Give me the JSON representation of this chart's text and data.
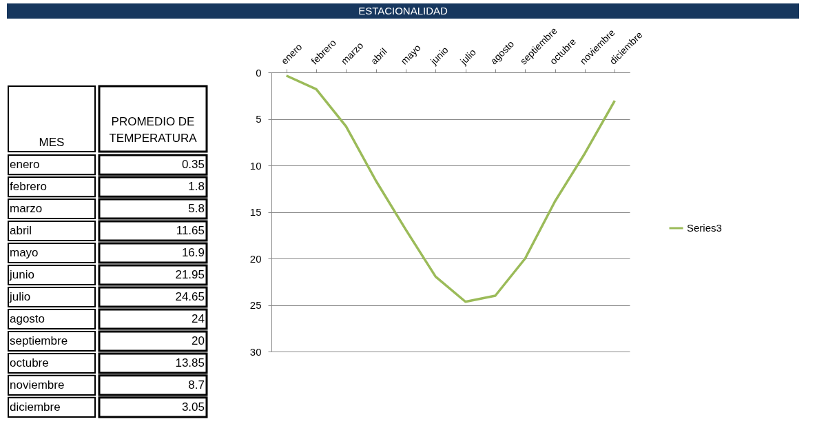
{
  "chart_data": [
    {
      "type": "other",
      "annotations": [
        "MES",
        "PROMEDIO DE TEMPERATURA"
      ],
      "categories": [
        "enero",
        "febrero",
        "marzo",
        "abril",
        "mayo",
        "junio",
        "julio",
        "agosto",
        "septiembre",
        "octubre",
        "noviembre",
        "diciembre"
      ],
      "value_labels": [
        "0.35",
        "1.8",
        "5.8",
        "11.65",
        "16.9",
        "21.95",
        "24.65",
        "24",
        "20",
        "13.85",
        "8.7",
        "3.05"
      ]
    },
    {
      "type": "line",
      "title": "ESTACIONALIDAD",
      "categories": [
        "enero",
        "febrero",
        "marzo",
        "abril",
        "mayo",
        "junio",
        "julio",
        "agosto",
        "septiembre",
        "octubre",
        "noviembre",
        "diciembre"
      ],
      "series": [
        {
          "name": "Series3",
          "color": "#9bbb59",
          "values": [
            0.35,
            1.8,
            5.8,
            11.65,
            16.9,
            21.95,
            24.65,
            24,
            20,
            13.85,
            8.7,
            3.05
          ]
        }
      ],
      "ylim": [
        30,
        0
      ],
      "yticks": [
        0,
        5,
        10,
        15,
        20,
        25,
        30
      ],
      "grid": "y",
      "legend": "right",
      "line_style": "solid"
    }
  ]
}
